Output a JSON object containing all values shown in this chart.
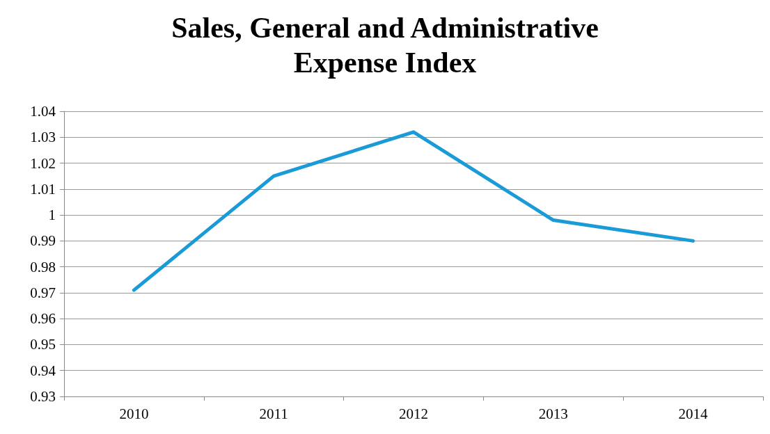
{
  "chart_data": {
    "type": "line",
    "title": "Sales, General and Administrative\nExpense Index",
    "categories": [
      "2010",
      "2011",
      "2012",
      "2013",
      "2014"
    ],
    "series": [
      {
        "color": "#1a9bd7",
        "values": [
          0.971,
          1.015,
          1.032,
          0.998,
          0.99
        ]
      }
    ],
    "ylim": [
      0.93,
      1.04
    ],
    "yticks": [
      0.93,
      0.94,
      0.95,
      0.96,
      0.97,
      0.98,
      0.99,
      1,
      1.01,
      1.02,
      1.03,
      1.04
    ],
    "grid": "y",
    "marker": "none",
    "line_style": "solid"
  }
}
